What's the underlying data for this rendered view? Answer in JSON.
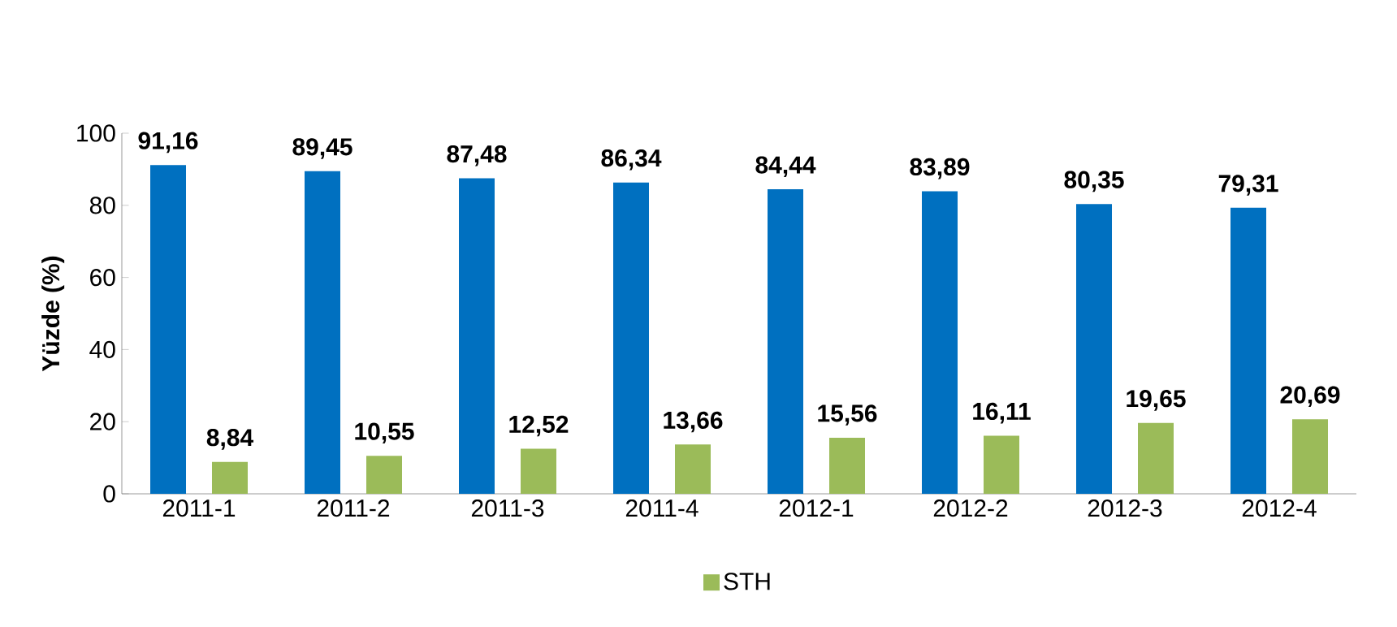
{
  "chart_data": {
    "type": "bar",
    "ylabel": "Yüzde (%)",
    "categories": [
      "2011-1",
      "2011-2",
      "2011-3",
      "2011-4",
      "2012-1",
      "2012-2",
      "2012-3",
      "2012-4"
    ],
    "series": [
      {
        "color": "#0070c0",
        "values": [
          91.16,
          89.45,
          87.48,
          86.34,
          84.44,
          83.89,
          80.35,
          79.31
        ],
        "value_labels": [
          "91,16",
          "89,45",
          "87,48",
          "86,34",
          "84,44",
          "83,89",
          "80,35",
          "79,31"
        ]
      },
      {
        "name": "STH",
        "color": "#9bbb59",
        "values": [
          8.84,
          10.55,
          12.52,
          13.66,
          15.56,
          16.11,
          19.65,
          20.69
        ],
        "value_labels": [
          "8,84",
          "10,55",
          "12,52",
          "13,66",
          "15,56",
          "16,11",
          "19,65",
          "20,69"
        ]
      }
    ],
    "ylim": [
      0,
      100
    ],
    "yticks": [
      0,
      20,
      40,
      60,
      80,
      100
    ],
    "legend": "bottom"
  }
}
